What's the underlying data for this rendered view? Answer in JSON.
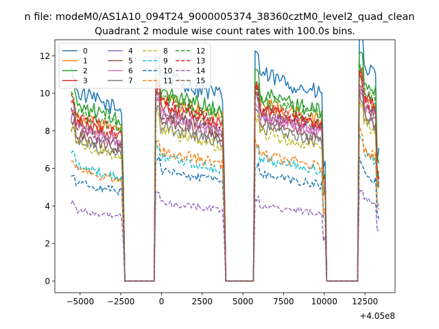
{
  "figure": {
    "suptitle": "n file: modeM0/AS1A10_094T24_9000005374_38360cztM0_level2_quad_clean"
  },
  "chart_data": {
    "type": "line",
    "title": "Quadrant 2 module wise count rates with 100.0s bins.",
    "xlabel": "",
    "ylabel": "",
    "x_offset_label": "+4.05e8",
    "xlim": [
      -6550,
      14350
    ],
    "ylim": [
      -0.62,
      12.85
    ],
    "x_ticks": [
      -5000,
      -2500,
      0,
      2500,
      5000,
      7500,
      10000,
      12500
    ],
    "x_tick_labels": [
      "−5000",
      "−2500",
      "0",
      "2500",
      "5000",
      "7500",
      "10000",
      "12500"
    ],
    "y_ticks": [
      0,
      2,
      4,
      6,
      8,
      10,
      12
    ],
    "y_tick_labels": [
      "0",
      "2",
      "4",
      "6",
      "8",
      "10",
      "12"
    ],
    "grid": false,
    "legend": {
      "placement": "top-left",
      "columns": 4
    },
    "segments": [
      {
        "start": -5550,
        "end": -2300
      },
      {
        "start": -350,
        "end": 3900
      },
      {
        "start": 5750,
        "end": 10050
      },
      {
        "start": 12150,
        "end": 13350
      }
    ],
    "series": [
      {
        "name": "0",
        "color": "#1f77b4",
        "dash": "solid",
        "levels": [
          9.6,
          10.4,
          10.5,
          11.2
        ]
      },
      {
        "name": "1",
        "color": "#ff7f0e",
        "dash": "solid",
        "levels": [
          8.4,
          9.2,
          9.0,
          9.6
        ]
      },
      {
        "name": "2",
        "color": "#2ca02c",
        "dash": "solid",
        "levels": [
          9.0,
          9.6,
          9.5,
          10.4
        ]
      },
      {
        "name": "3",
        "color": "#d62728",
        "dash": "solid",
        "levels": [
          8.1,
          8.9,
          8.7,
          9.6
        ]
      },
      {
        "name": "4",
        "color": "#9467bd",
        "dash": "solid",
        "levels": [
          7.6,
          8.4,
          8.4,
          9.0
        ]
      },
      {
        "name": "5",
        "color": "#8c564b",
        "dash": "solid",
        "levels": [
          7.4,
          8.2,
          8.1,
          8.7
        ]
      },
      {
        "name": "6",
        "color": "#e377c2",
        "dash": "solid",
        "levels": [
          7.8,
          8.4,
          8.3,
          9.0
        ]
      },
      {
        "name": "7",
        "color": "#7f7f7f",
        "dash": "solid",
        "levels": [
          7.1,
          7.8,
          7.8,
          8.5
        ]
      },
      {
        "name": "8",
        "color": "#bcbd22",
        "dash": "dashed",
        "levels": [
          7.0,
          7.6,
          7.5,
          8.2
        ]
      },
      {
        "name": "9",
        "color": "#17becf",
        "dash": "dashed",
        "levels": [
          5.8,
          6.3,
          6.2,
          6.6
        ]
      },
      {
        "name": "10",
        "color": "#1f77b4",
        "dash": "dashed",
        "levels": [
          5.0,
          5.6,
          5.4,
          5.6
        ]
      },
      {
        "name": "11",
        "color": "#ff7f0e",
        "dash": "dashed",
        "levels": [
          5.6,
          6.6,
          6.4,
          6.9
        ]
      },
      {
        "name": "12",
        "color": "#2ca02c",
        "dash": "dashed",
        "levels": [
          8.6,
          9.3,
          9.2,
          9.9
        ]
      },
      {
        "name": "13",
        "color": "#d62728",
        "dash": "dashed",
        "levels": [
          8.3,
          9.0,
          8.8,
          9.4
        ]
      },
      {
        "name": "14",
        "color": "#9467bd",
        "dash": "dashed",
        "levels": [
          3.6,
          4.0,
          3.8,
          4.3
        ]
      },
      {
        "name": "15",
        "color": "#8c564b",
        "dash": "dashed",
        "levels": [
          7.9,
          8.5,
          8.6,
          9.2
        ]
      }
    ]
  }
}
